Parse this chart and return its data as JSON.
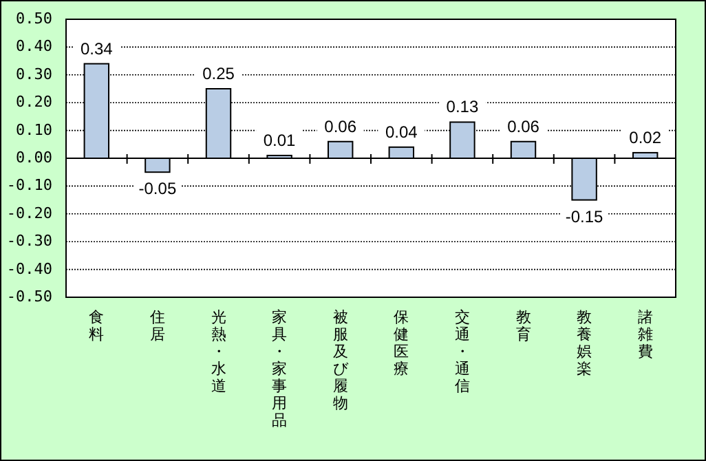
{
  "chart_data": {
    "type": "bar",
    "categories": [
      "食料",
      "住居",
      "光熱・水道",
      "家具・家事用品",
      "被服及び履物",
      "保健医療",
      "交通・通信",
      "教育",
      "教養娯楽",
      "諸雑費"
    ],
    "values": [
      0.34,
      -0.05,
      0.25,
      0.01,
      0.06,
      0.04,
      0.13,
      0.06,
      -0.15,
      0.02
    ],
    "color": "#b9cde5",
    "ylim": [
      -0.5,
      0.5
    ],
    "yticks": [
      {
        "value": -0.5,
        "label": "-0.50"
      },
      {
        "value": -0.4,
        "label": "-0.40"
      },
      {
        "value": -0.3,
        "label": "-0.30"
      },
      {
        "value": -0.2,
        "label": "-0.20"
      },
      {
        "value": -0.1,
        "label": "-0.10"
      },
      {
        "value": 0,
        "label": "0.00"
      },
      {
        "value": 0.1,
        "label": "0.10"
      },
      {
        "value": 0.2,
        "label": "0.20"
      },
      {
        "value": 0.3,
        "label": "0.30"
      },
      {
        "value": 0.4,
        "label": "0.40"
      },
      {
        "value": 0.5,
        "label": "0.50"
      }
    ],
    "grid": "y",
    "data_labels": true
  }
}
